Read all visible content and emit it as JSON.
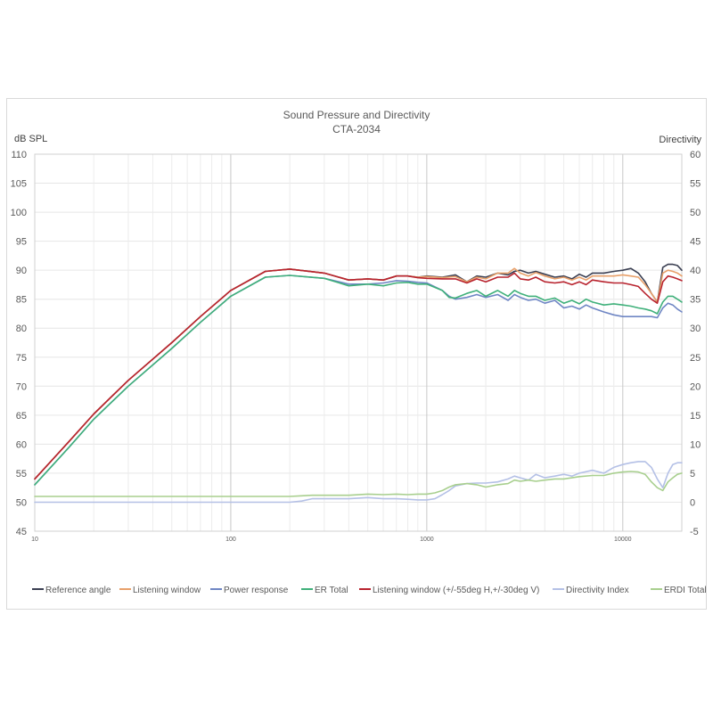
{
  "chart_data": {
    "type": "line",
    "title": "Sound Pressure and Directivity",
    "subtitle": "CTA-2034",
    "xlabel": "",
    "ylabel": "dB SPL",
    "y2label": "Directivity",
    "x_scale": "log",
    "xlim": [
      10,
      20000
    ],
    "ylim": [
      45,
      110
    ],
    "y2lim": [
      -5,
      60
    ],
    "x_ticks": [
      10,
      100,
      1000,
      10000
    ],
    "y_ticks": [
      45,
      50,
      55,
      60,
      65,
      70,
      75,
      80,
      85,
      90,
      95,
      100,
      105,
      110
    ],
    "y2_ticks": [
      -5,
      0,
      5,
      10,
      15,
      20,
      25,
      30,
      35,
      40,
      45,
      50,
      55,
      60
    ],
    "grid": true,
    "legend_position": "bottom",
    "series": [
      {
        "name": "Reference angle",
        "color": "#3b3f52",
        "axis": "left",
        "x": [
          10,
          15,
          20,
          30,
          50,
          70,
          100,
          150,
          200,
          300,
          400,
          500,
          600,
          700,
          800,
          900,
          1000,
          1200,
          1400,
          1600,
          1800,
          2000,
          2300,
          2600,
          2800,
          3000,
          3300,
          3600,
          4000,
          4500,
          5000,
          5500,
          6000,
          6500,
          7000,
          8000,
          9000,
          10000,
          11000,
          12000,
          13000,
          14000,
          15000,
          16000,
          17000,
          18000,
          19000,
          20000
        ],
        "y": [
          54.0,
          60.5,
          65.2,
          71.0,
          77.5,
          82.0,
          86.5,
          89.8,
          90.2,
          89.5,
          88.3,
          88.5,
          88.3,
          89.0,
          89.0,
          88.8,
          89.0,
          88.8,
          89.2,
          88.0,
          89.0,
          88.8,
          89.5,
          89.2,
          89.8,
          90.0,
          89.5,
          89.8,
          89.3,
          88.8,
          89.0,
          88.5,
          89.3,
          88.8,
          89.5,
          89.5,
          89.8,
          90.0,
          90.3,
          89.5,
          88.0,
          86.0,
          84.5,
          90.5,
          91.0,
          91.0,
          90.8,
          90.0
        ]
      },
      {
        "name": "Listening window",
        "color": "#e8a06a",
        "axis": "left",
        "x": [
          10,
          15,
          20,
          30,
          50,
          70,
          100,
          150,
          200,
          300,
          400,
          500,
          600,
          700,
          800,
          900,
          1000,
          1200,
          1400,
          1600,
          1800,
          2000,
          2300,
          2600,
          2800,
          3000,
          3300,
          3600,
          4000,
          4500,
          5000,
          5500,
          6000,
          6500,
          7000,
          8000,
          9000,
          10000,
          11000,
          12000,
          13000,
          14000,
          15000,
          16000,
          17000,
          18000,
          19000,
          20000
        ],
        "y": [
          54.0,
          60.5,
          65.2,
          71.0,
          77.5,
          82.0,
          86.5,
          89.8,
          90.2,
          89.5,
          88.3,
          88.5,
          88.3,
          89.0,
          89.0,
          88.8,
          88.9,
          88.7,
          88.9,
          88.0,
          88.8,
          88.5,
          89.5,
          89.5,
          90.3,
          89.5,
          89.0,
          89.6,
          89.0,
          88.5,
          88.8,
          88.3,
          88.8,
          88.3,
          89.0,
          89.0,
          89.0,
          89.2,
          89.0,
          88.8,
          87.5,
          86.0,
          84.5,
          89.5,
          90.0,
          89.8,
          89.5,
          89.0
        ]
      },
      {
        "name": "Power response",
        "color": "#6f86c4",
        "axis": "left",
        "x": [
          10,
          15,
          20,
          30,
          50,
          70,
          100,
          150,
          200,
          300,
          400,
          500,
          600,
          700,
          800,
          900,
          1000,
          1200,
          1300,
          1400,
          1600,
          1800,
          2000,
          2300,
          2600,
          2800,
          3000,
          3300,
          3600,
          4000,
          4500,
          5000,
          5500,
          6000,
          6500,
          7000,
          8000,
          9000,
          10000,
          11000,
          12000,
          13000,
          14000,
          15000,
          16000,
          17000,
          18000,
          19000,
          20000
        ],
        "y": [
          53.0,
          59.5,
          64.3,
          70.0,
          76.5,
          81.0,
          85.5,
          88.8,
          89.1,
          88.6,
          87.6,
          87.6,
          87.8,
          88.2,
          88.1,
          87.9,
          87.8,
          86.5,
          85.5,
          85.0,
          85.3,
          85.8,
          85.3,
          85.8,
          84.8,
          85.8,
          85.3,
          84.8,
          85.0,
          84.3,
          84.8,
          83.5,
          83.8,
          83.3,
          84.0,
          83.5,
          82.8,
          82.3,
          82.0,
          82.0,
          82.0,
          82.0,
          82.0,
          81.8,
          83.5,
          84.3,
          84.0,
          83.3,
          82.8
        ]
      },
      {
        "name": "ER Total",
        "color": "#3fb07a",
        "axis": "left",
        "x": [
          10,
          15,
          20,
          30,
          50,
          70,
          100,
          150,
          200,
          300,
          400,
          500,
          600,
          700,
          800,
          900,
          1000,
          1200,
          1300,
          1400,
          1600,
          1800,
          2000,
          2300,
          2600,
          2800,
          3000,
          3300,
          3600,
          4000,
          4500,
          5000,
          5500,
          6000,
          6500,
          7000,
          8000,
          9000,
          10000,
          11000,
          12000,
          13000,
          14000,
          15000,
          16000,
          17000,
          18000,
          19000,
          20000
        ],
        "y": [
          53.0,
          59.5,
          64.3,
          70.0,
          76.5,
          81.0,
          85.5,
          88.8,
          89.1,
          88.6,
          87.3,
          87.6,
          87.3,
          87.8,
          87.9,
          87.6,
          87.6,
          86.5,
          85.3,
          85.2,
          86.0,
          86.5,
          85.5,
          86.5,
          85.5,
          86.5,
          86.0,
          85.5,
          85.5,
          84.8,
          85.2,
          84.3,
          84.8,
          84.2,
          85.0,
          84.5,
          84.0,
          84.2,
          84.0,
          83.8,
          83.5,
          83.3,
          83.0,
          82.5,
          84.5,
          85.5,
          85.5,
          85.0,
          84.5
        ]
      },
      {
        "name": "Listening window (+/-55deg H,+/-30deg V)",
        "color": "#b8232e",
        "axis": "left",
        "x": [
          10,
          15,
          20,
          30,
          50,
          70,
          100,
          150,
          200,
          300,
          400,
          500,
          600,
          700,
          800,
          900,
          1000,
          1200,
          1400,
          1600,
          1800,
          2000,
          2300,
          2600,
          2800,
          3000,
          3300,
          3600,
          4000,
          4500,
          5000,
          5500,
          6000,
          6500,
          7000,
          8000,
          9000,
          10000,
          11000,
          12000,
          13000,
          14000,
          15000,
          16000,
          17000,
          18000,
          19000,
          20000
        ],
        "y": [
          54.0,
          60.5,
          65.2,
          71.0,
          77.5,
          82.0,
          86.5,
          89.8,
          90.2,
          89.5,
          88.3,
          88.5,
          88.3,
          89.0,
          89.0,
          88.7,
          88.6,
          88.5,
          88.5,
          87.8,
          88.5,
          88.0,
          88.8,
          88.8,
          89.5,
          88.5,
          88.3,
          88.8,
          88.0,
          87.8,
          88.0,
          87.5,
          88.0,
          87.5,
          88.3,
          88.0,
          87.8,
          87.8,
          87.5,
          87.2,
          86.0,
          85.0,
          84.3,
          88.0,
          89.0,
          88.8,
          88.5,
          88.2
        ]
      },
      {
        "name": "Directivity Index",
        "color": "#b4c0e6",
        "axis": "right",
        "x": [
          10,
          20,
          50,
          100,
          150,
          200,
          230,
          260,
          300,
          400,
          500,
          600,
          700,
          800,
          900,
          1000,
          1100,
          1200,
          1300,
          1400,
          1600,
          1800,
          2000,
          2300,
          2600,
          2800,
          3000,
          3300,
          3600,
          4000,
          4500,
          5000,
          5500,
          6000,
          7000,
          8000,
          9000,
          10000,
          11000,
          12000,
          13000,
          14000,
          15000,
          16000,
          17000,
          18000,
          19000,
          20000
        ],
        "y": [
          0.0,
          0.0,
          0.0,
          0.0,
          0.0,
          0.0,
          0.2,
          0.6,
          0.6,
          0.6,
          0.8,
          0.6,
          0.6,
          0.5,
          0.4,
          0.4,
          0.6,
          1.3,
          2.0,
          2.8,
          3.2,
          3.3,
          3.3,
          3.5,
          4.0,
          4.5,
          4.2,
          3.8,
          4.8,
          4.2,
          4.5,
          4.8,
          4.5,
          5.0,
          5.5,
          5.0,
          6.0,
          6.5,
          6.8,
          7.0,
          7.0,
          6.0,
          4.0,
          2.5,
          5.0,
          6.5,
          6.8,
          6.8
        ]
      },
      {
        "name": "ERDI Total",
        "color": "#a8cf8e",
        "axis": "right",
        "x": [
          10,
          20,
          50,
          100,
          150,
          200,
          230,
          260,
          300,
          400,
          500,
          600,
          700,
          800,
          900,
          1000,
          1100,
          1200,
          1300,
          1400,
          1600,
          1800,
          2000,
          2300,
          2600,
          2800,
          3000,
          3300,
          3600,
          4000,
          4500,
          5000,
          5500,
          6000,
          7000,
          8000,
          9000,
          10000,
          11000,
          12000,
          13000,
          14000,
          15000,
          16000,
          17000,
          18000,
          19000,
          20000
        ],
        "y": [
          1.0,
          1.0,
          1.0,
          1.0,
          1.0,
          1.0,
          1.1,
          1.2,
          1.2,
          1.2,
          1.4,
          1.3,
          1.4,
          1.3,
          1.4,
          1.4,
          1.6,
          2.0,
          2.6,
          3.0,
          3.2,
          3.0,
          2.6,
          3.0,
          3.2,
          3.8,
          3.6,
          3.8,
          3.6,
          3.8,
          4.0,
          4.0,
          4.2,
          4.4,
          4.6,
          4.6,
          5.0,
          5.2,
          5.3,
          5.2,
          4.8,
          3.5,
          2.5,
          2.0,
          3.5,
          4.2,
          4.8,
          5.0
        ]
      }
    ]
  }
}
